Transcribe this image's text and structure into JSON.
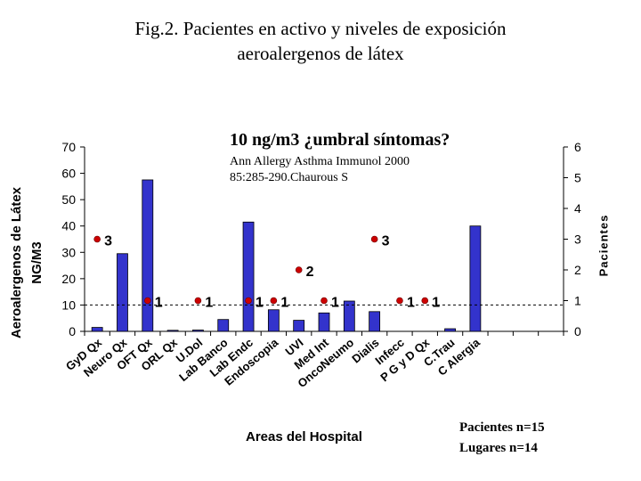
{
  "title": {
    "line1": "Fig.2. Pacientes en activo  y niveles de exposición",
    "line2": "aeroalergenos de látex"
  },
  "annotation": {
    "heading": "10 ng/m3 ¿umbral síntomas?",
    "citation_line1": "Ann  Allergy Asthma Immunol 2000",
    "citation_line2": "85:285-290.Chaurous S"
  },
  "notes": {
    "pacientes": "Pacientes n=15",
    "lugares": "Lugares n=14"
  },
  "chart_data": {
    "type": "bar",
    "title": "Fig.2. Pacientes en activo  y niveles de exposición aeroalergenos de látex",
    "xlabel": "Areas del Hospital",
    "ylabel_line1": "Aeroalergenos de Látex",
    "ylabel_line2": "NG/M3",
    "y2label": "Pacientes",
    "ylim": [
      0,
      70
    ],
    "y_ticks": [
      "0",
      "10",
      "20",
      "30",
      "40",
      "50",
      "60",
      "70"
    ],
    "y2lim": [
      0,
      6
    ],
    "y2_ticks": [
      "0",
      "1",
      "2",
      "3",
      "4",
      "5",
      "6"
    ],
    "categories": [
      "GyD Qx",
      "Neuro Qx",
      "OFT Qx",
      "ORL Qx",
      "U.Dol",
      "Lab Banco",
      "Lab Endc",
      "Endoscopia",
      "UVI",
      "Med Int",
      "OncoNeumo",
      "Dialis",
      "Infecc",
      "P G y D Qx",
      "C.Trau",
      "C Alergia",
      "",
      "",
      ""
    ],
    "bar_values": [
      1.5,
      29.5,
      57.5,
      0.4,
      0.5,
      4.5,
      41.5,
      8.2,
      4.2,
      7,
      11.5,
      7.5,
      0,
      0,
      1,
      40,
      0,
      0,
      0
    ],
    "points": [
      {
        "x": 0,
        "y": 3,
        "label": "3"
      },
      {
        "x": 2,
        "y": 1,
        "label": "1"
      },
      {
        "x": 4,
        "y": 1,
        "label": "1"
      },
      {
        "x": 6,
        "y": 1,
        "label": "1"
      },
      {
        "x": 7,
        "y": 1,
        "label": "1"
      },
      {
        "x": 8,
        "y": 2,
        "label": "2"
      },
      {
        "x": 9,
        "y": 1,
        "label": "1"
      },
      {
        "x": 11,
        "y": 3,
        "label": "3"
      },
      {
        "x": 12,
        "y": 1,
        "label": "1"
      },
      {
        "x": 13,
        "y": 1,
        "label": "1"
      }
    ],
    "reference_line": 10,
    "grid": false,
    "colors": {
      "bar": "#3333cc",
      "point": "#cc0000",
      "reference": "#000000"
    }
  }
}
